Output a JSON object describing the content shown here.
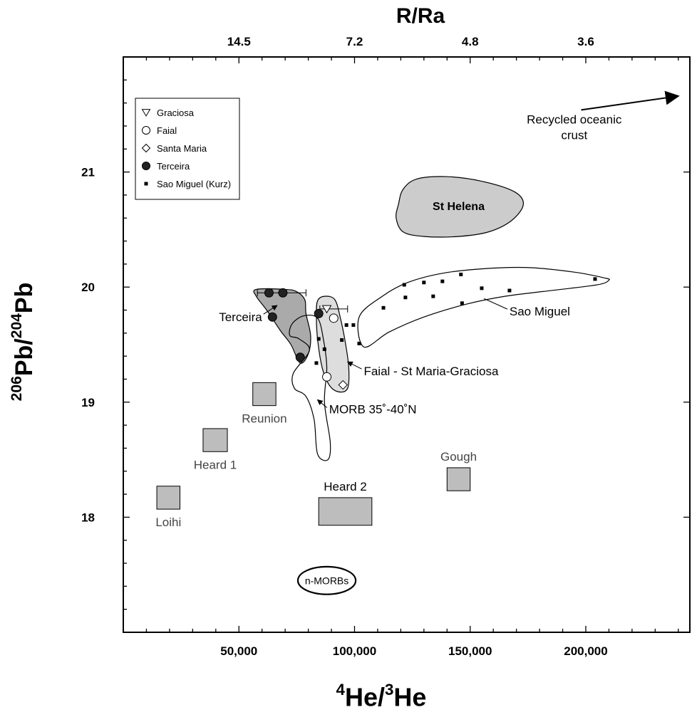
{
  "chart_data": {
    "type": "scatter",
    "title": "",
    "top_axis": {
      "label": "R/Ra",
      "ticks": [
        {
          "x": 50000,
          "label": "14.5"
        },
        {
          "x": 100000,
          "label": "7.2"
        },
        {
          "x": 150000,
          "label": "4.8"
        },
        {
          "x": 200000,
          "label": "3.6"
        }
      ]
    },
    "xlabel": {
      "pre": "4",
      "a": "He/",
      "mid": "3",
      "b": "He"
    },
    "ylabel": {
      "pre": "206",
      "a": "Pb/",
      "mid": "204",
      "b": "Pb"
    },
    "xlim": [
      0,
      245000
    ],
    "ylim": [
      17,
      22
    ],
    "x_ticks": [
      {
        "value": 50000,
        "label": "50,000"
      },
      {
        "value": 100000,
        "label": "100,000"
      },
      {
        "value": 150000,
        "label": "150,000"
      },
      {
        "value": 200000,
        "label": "200,000"
      }
    ],
    "y_ticks": [
      {
        "value": 18,
        "label": "18"
      },
      {
        "value": 19,
        "label": "19"
      },
      {
        "value": 20,
        "label": "20"
      },
      {
        "value": 21,
        "label": "21"
      }
    ],
    "legend": {
      "position": "top-left",
      "entries": [
        {
          "symbol": "triangle-down-open",
          "label": "Graciosa"
        },
        {
          "symbol": "circle-open",
          "label": "Faial"
        },
        {
          "symbol": "diamond-open",
          "label": "Santa Maria"
        },
        {
          "symbol": "circle-filled",
          "label": "Terceira"
        },
        {
          "symbol": "square-filled",
          "label": "Sao Miguel (Kurz)"
        }
      ]
    },
    "series": [
      {
        "name": "Terceira",
        "symbol": "circle-filled",
        "points": [
          [
            63000,
            19.95
          ],
          [
            69000,
            19.95
          ],
          [
            64500,
            19.74
          ],
          [
            76500,
            19.39
          ],
          [
            84500,
            19.77
          ]
        ]
      },
      {
        "name": "Graciosa",
        "symbol": "triangle-down-open",
        "points": [
          [
            88000,
            19.81
          ]
        ]
      },
      {
        "name": "Faial",
        "symbol": "circle-open",
        "points": [
          [
            91000,
            19.73
          ],
          [
            88000,
            19.22
          ]
        ]
      },
      {
        "name": "Santa Maria",
        "symbol": "diamond-open",
        "points": [
          [
            95000,
            19.15
          ]
        ]
      },
      {
        "name": "Sao Miguel (Kurz)",
        "symbol": "square-filled",
        "points": [
          [
            84500,
            19.55
          ],
          [
            87000,
            19.46
          ],
          [
            83500,
            19.34
          ],
          [
            94500,
            19.54
          ],
          [
            96500,
            19.67
          ],
          [
            99500,
            19.67
          ],
          [
            102000,
            19.51
          ],
          [
            112500,
            19.82
          ],
          [
            121500,
            20.02
          ],
          [
            122000,
            19.91
          ],
          [
            130000,
            20.04
          ],
          [
            134000,
            19.92
          ],
          [
            138000,
            20.05
          ],
          [
            146000,
            20.11
          ],
          [
            146500,
            19.86
          ],
          [
            155000,
            19.99
          ],
          [
            167000,
            19.97
          ],
          [
            204000,
            20.07
          ]
        ]
      }
    ],
    "error_bars": [
      {
        "y": 19.95,
        "x_from": 58000,
        "x_to": 79000
      },
      {
        "y": 19.81,
        "x_from": 85000,
        "x_to": 97000
      }
    ],
    "fields": [
      {
        "label": "St Helena",
        "fill": "#cccccc",
        "polygon": [
          [
            118000,
            20.6
          ],
          [
            121000,
            20.48
          ],
          [
            130000,
            20.44
          ],
          [
            145000,
            20.44
          ],
          [
            158000,
            20.48
          ],
          [
            168000,
            20.58
          ],
          [
            173000,
            20.72
          ],
          [
            169000,
            20.83
          ],
          [
            155000,
            20.92
          ],
          [
            140000,
            20.96
          ],
          [
            127000,
            20.94
          ],
          [
            121000,
            20.85
          ],
          [
            119000,
            20.72
          ]
        ]
      },
      {
        "label": "Terceira",
        "fill": "#aaaaaa",
        "polygon": [
          [
            57500,
            19.92
          ],
          [
            57500,
            19.98
          ],
          [
            70000,
            19.98
          ],
          [
            75000,
            19.96
          ],
          [
            78500,
            19.89
          ],
          [
            79000,
            19.77
          ],
          [
            81000,
            19.58
          ],
          [
            80000,
            19.42
          ],
          [
            76500,
            19.34
          ],
          [
            72500,
            19.5
          ],
          [
            68000,
            19.62
          ],
          [
            62000,
            19.8
          ]
        ]
      },
      {
        "label": "Faial - St Maria-Graciosa",
        "fill": "#dddddd",
        "polygon": [
          [
            84000,
            19.88
          ],
          [
            87000,
            19.92
          ],
          [
            91500,
            19.89
          ],
          [
            94000,
            19.72
          ],
          [
            96000,
            19.52
          ],
          [
            97500,
            19.3
          ],
          [
            97000,
            19.12
          ],
          [
            93000,
            19.09
          ],
          [
            89000,
            19.15
          ],
          [
            86000,
            19.3
          ],
          [
            84000,
            19.55
          ],
          [
            83500,
            19.75
          ]
        ]
      },
      {
        "label": "Sao Miguel",
        "fill": "none",
        "polygon": [
          [
            102000,
            19.74
          ],
          [
            112000,
            19.92
          ],
          [
            123000,
            20.04
          ],
          [
            138000,
            20.12
          ],
          [
            156000,
            20.16
          ],
          [
            175000,
            20.17
          ],
          [
            195000,
            20.13
          ],
          [
            208000,
            20.08
          ],
          [
            210000,
            20.06
          ],
          [
            205000,
            20.02
          ],
          [
            185000,
            19.97
          ],
          [
            165000,
            19.92
          ],
          [
            148000,
            19.85
          ],
          [
            130000,
            19.74
          ],
          [
            115000,
            19.61
          ],
          [
            104000,
            19.48
          ]
        ]
      },
      {
        "label": "MORB 35˚-40˚N",
        "fill": "none",
        "polygon": [
          [
            72000,
            19.58
          ],
          [
            73000,
            19.68
          ],
          [
            78000,
            19.75
          ],
          [
            84000,
            19.73
          ],
          [
            86500,
            19.55
          ],
          [
            88000,
            19.3
          ],
          [
            87000,
            19.0
          ],
          [
            89500,
            18.65
          ],
          [
            88500,
            18.5
          ],
          [
            84000,
            18.55
          ],
          [
            82500,
            18.85
          ],
          [
            79000,
            19.05
          ],
          [
            74000,
            19.12
          ],
          [
            73500,
            19.25
          ],
          [
            80500,
            19.45
          ],
          [
            76000,
            19.55
          ]
        ]
      },
      {
        "label": "n-MORBs",
        "fill": "ellipse-open",
        "center": [
          88000,
          17.45
        ],
        "rx": 12500,
        "ry": 0.12
      }
    ],
    "boxes": [
      {
        "label": "Reunion",
        "x": [
          56000,
          66000
        ],
        "y": [
          18.97,
          19.17
        ]
      },
      {
        "label": "Heard 1",
        "x": [
          34500,
          45000
        ],
        "y": [
          18.57,
          18.77
        ]
      },
      {
        "label": "Loihi",
        "x": [
          14500,
          24500
        ],
        "y": [
          18.07,
          18.27
        ]
      },
      {
        "label": "Gough",
        "x": [
          140000,
          150000
        ],
        "y": [
          18.23,
          18.43
        ]
      },
      {
        "label": "Heard 2",
        "x": [
          84500,
          107500
        ],
        "y": [
          17.93,
          18.17
        ]
      }
    ],
    "annotations": [
      {
        "text": "Terceira",
        "x": 60000,
        "y": 19.74
      },
      {
        "text": "Faial - St Maria-Graciosa",
        "x": 104000,
        "y": 19.27
      },
      {
        "text": "Sao Miguel",
        "x": 167000,
        "y": 19.79
      },
      {
        "text": "MORB 35˚-40˚N",
        "x": 89000,
        "y": 18.94
      },
      {
        "text": "Recycled oceanic crust",
        "lines": [
          "Recycled oceanic",
          "crust"
        ],
        "x": 195000,
        "y": 21.42
      }
    ]
  }
}
